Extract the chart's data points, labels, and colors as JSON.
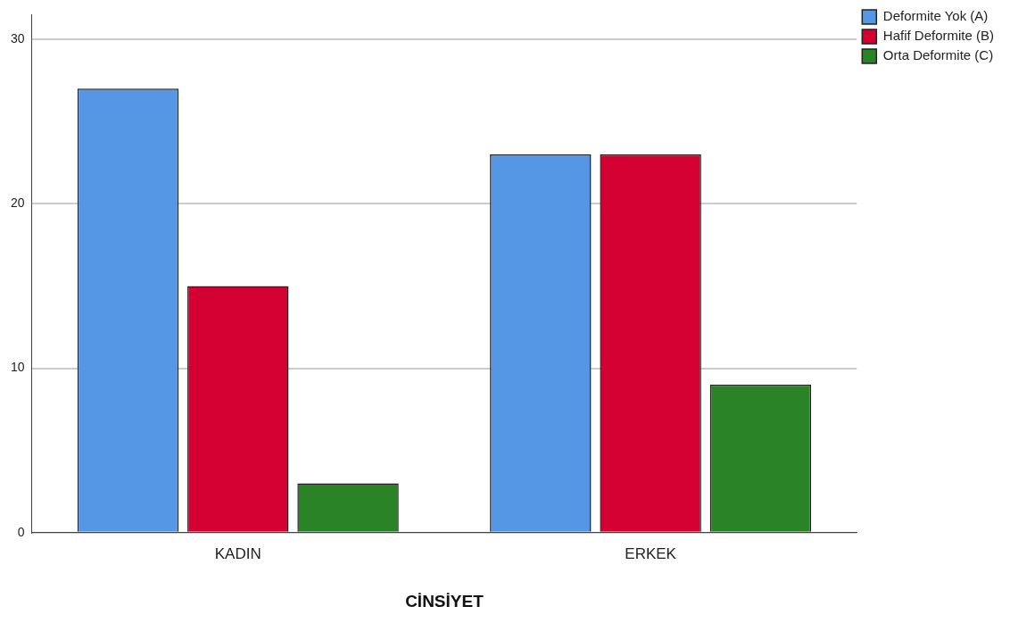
{
  "chart_data": {
    "type": "bar",
    "xlabel": "CİNSİYET",
    "categories": [
      "KADIN",
      "ERKEK"
    ],
    "series": [
      {
        "name": "Deformite Yok (A)",
        "color": "#5596e5",
        "values": [
          27,
          23
        ]
      },
      {
        "name": "Hafif Deformite (B)",
        "color": "#d50032",
        "values": [
          15,
          23
        ]
      },
      {
        "name": "Orta Deformite (C)",
        "color": "#2a8425",
        "values": [
          3,
          9
        ]
      }
    ],
    "ylim": [
      0,
      31.5
    ],
    "yticks": [
      0,
      10,
      20,
      30
    ],
    "grid": "y",
    "legend": "top right"
  }
}
